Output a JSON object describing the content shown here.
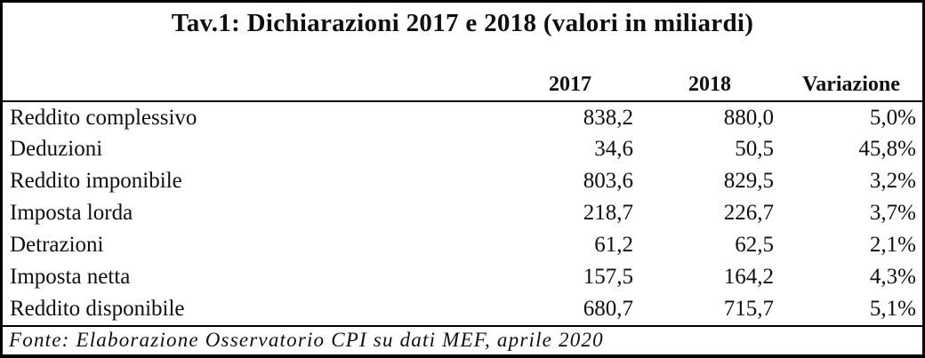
{
  "title": "Tav.1: Dichiarazioni 2017 e 2018 (valori in miliardi)",
  "header": {
    "col_label": "",
    "col_2017": "2017",
    "col_2018": "2018",
    "col_variazione": "Variazione"
  },
  "rows": [
    {
      "label": "Reddito complessivo",
      "v2017": "838,2",
      "v2018": "880,0",
      "variazione": "5,0%"
    },
    {
      "label": "Deduzioni",
      "v2017": "34,6",
      "v2018": "50,5",
      "variazione": "45,8%"
    },
    {
      "label": "Reddito imponibile",
      "v2017": "803,6",
      "v2018": "829,5",
      "variazione": "3,2%"
    },
    {
      "label": "Imposta lorda",
      "v2017": "218,7",
      "v2018": "226,7",
      "variazione": "3,7%"
    },
    {
      "label": "Detrazioni",
      "v2017": "61,2",
      "v2018": "62,5",
      "variazione": "2,1%"
    },
    {
      "label": "Imposta netta",
      "v2017": "157,5",
      "v2018": "164,2",
      "variazione": "4,3%"
    },
    {
      "label": "Reddito disponibile",
      "v2017": "680,7",
      "v2018": "715,7",
      "variazione": "5,1%"
    }
  ],
  "source_note": "Fonte: Elaborazione Osservatorio CPI su dati MEF, aprile 2020",
  "colors": {
    "border": "#000000",
    "text": "#0f0f0f",
    "background": "#ffffff"
  },
  "chart_data": {
    "type": "table",
    "title": "Tav.1: Dichiarazioni 2017 e 2018 (valori in miliardi)",
    "columns": [
      "",
      "2017",
      "2018",
      "Variazione"
    ],
    "rows": [
      [
        "Reddito complessivo",
        838.2,
        880.0,
        "5,0%"
      ],
      [
        "Deduzioni",
        34.6,
        50.5,
        "45,8%"
      ],
      [
        "Reddito imponibile",
        803.6,
        829.5,
        "3,2%"
      ],
      [
        "Imposta lorda",
        218.7,
        226.7,
        "3,7%"
      ],
      [
        "Detrazioni",
        61.2,
        62.5,
        "2,1%"
      ],
      [
        "Imposta netta",
        157.5,
        164.2,
        "4,3%"
      ],
      [
        "Reddito disponibile",
        680.7,
        715.7,
        "5,1%"
      ]
    ],
    "source": "Fonte: Elaborazione Osservatorio CPI su dati MEF, aprile 2020",
    "layout": {
      "grid": "horizontal rules only",
      "value_alignment": "right",
      "decimal_separator": "comma"
    }
  }
}
